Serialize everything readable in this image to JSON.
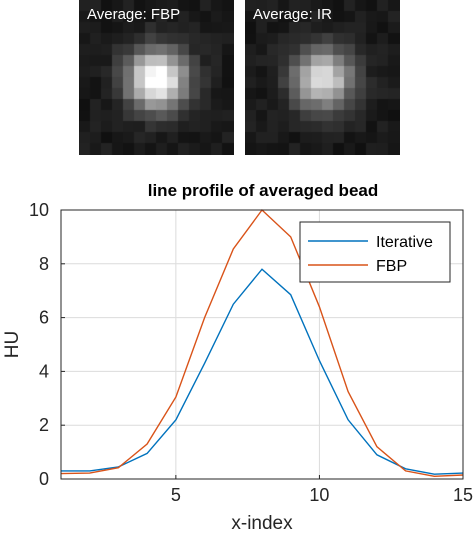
{
  "thumbnails": [
    {
      "label": "Average: FBP",
      "peak_intensity": 1.0
    },
    {
      "label": "Average: IR",
      "peak_intensity": 0.8
    }
  ],
  "chart_data": {
    "type": "line",
    "title": "line profile of averaged bead",
    "xlabel": "x-index",
    "ylabel": "HU",
    "xlim": [
      1,
      15
    ],
    "ylim": [
      0,
      10
    ],
    "xticks": [
      5,
      10,
      15
    ],
    "yticks": [
      0,
      2,
      4,
      6,
      8,
      10
    ],
    "grid": true,
    "legend_position": "top-right",
    "x": [
      1,
      2,
      3,
      4,
      5,
      6,
      7,
      8,
      9,
      10,
      11,
      12,
      13,
      14,
      15
    ],
    "series": [
      {
        "name": "Iterative",
        "color": "#0072BD",
        "values": [
          0.3,
          0.3,
          0.45,
          0.95,
          2.2,
          4.3,
          6.5,
          7.8,
          6.85,
          4.4,
          2.2,
          0.9,
          0.38,
          0.18,
          0.22
        ]
      },
      {
        "name": "FBP",
        "color": "#D95319",
        "values": [
          0.2,
          0.22,
          0.42,
          1.3,
          3.05,
          6.0,
          8.55,
          10.0,
          9.0,
          6.4,
          3.25,
          1.2,
          0.3,
          0.1,
          0.15
        ]
      }
    ]
  }
}
